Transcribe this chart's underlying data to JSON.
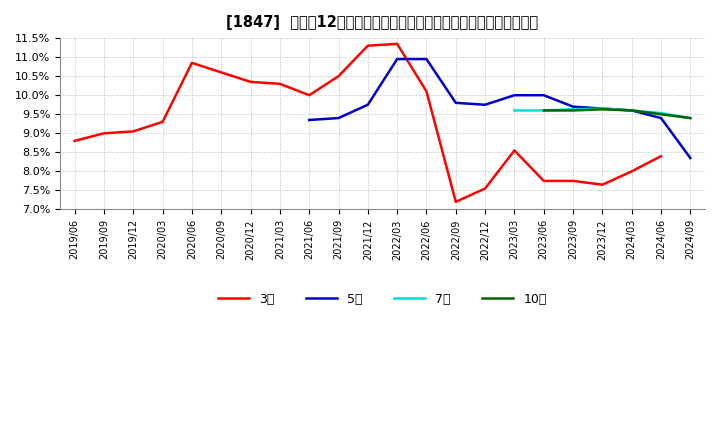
{
  "title": "[1847]  売上高12か月移動合計の対前年同期増減率の標準偏差の推移",
  "ylim": [
    0.07,
    0.115
  ],
  "yticks": [
    0.07,
    0.075,
    0.08,
    0.085,
    0.09,
    0.095,
    0.1,
    0.105,
    0.11,
    0.115
  ],
  "background_color": "#ffffff",
  "grid_color": "#bbbbbb",
  "series": {
    "3year": {
      "color": "#ff0000",
      "label": "3年",
      "data": [
        [
          "2019/06",
          0.088
        ],
        [
          "2019/09",
          0.09
        ],
        [
          "2019/12",
          0.0905
        ],
        [
          "2020/03",
          0.093
        ],
        [
          "2020/06",
          0.1085
        ],
        [
          "2020/09",
          0.106
        ],
        [
          "2020/12",
          0.1035
        ],
        [
          "2021/03",
          0.103
        ],
        [
          "2021/06",
          0.1
        ],
        [
          "2021/09",
          0.105
        ],
        [
          "2021/12",
          0.113
        ],
        [
          "2022/03",
          0.1135
        ],
        [
          "2022/06",
          0.101
        ],
        [
          "2022/09",
          0.072
        ],
        [
          "2022/12",
          0.0755
        ],
        [
          "2023/03",
          0.0855
        ],
        [
          "2023/06",
          0.0775
        ],
        [
          "2023/09",
          0.0775
        ],
        [
          "2023/12",
          0.0765
        ],
        [
          "2024/03",
          0.08
        ],
        [
          "2024/06",
          0.084
        ]
      ]
    },
    "5year": {
      "color": "#0000cc",
      "label": "5年",
      "data": [
        [
          "2021/06",
          0.0935
        ],
        [
          "2021/09",
          0.094
        ],
        [
          "2021/12",
          0.0975
        ],
        [
          "2022/03",
          0.1095
        ],
        [
          "2022/06",
          0.1095
        ],
        [
          "2022/09",
          0.098
        ],
        [
          "2022/12",
          0.0975
        ],
        [
          "2023/03",
          0.1
        ],
        [
          "2023/06",
          0.1
        ],
        [
          "2023/09",
          0.097
        ],
        [
          "2023/12",
          0.0965
        ],
        [
          "2024/03",
          0.096
        ],
        [
          "2024/06",
          0.094
        ],
        [
          "2024/09",
          0.0835
        ]
      ]
    },
    "7year": {
      "color": "#00dddd",
      "label": "7年",
      "data": [
        [
          "2023/03",
          0.096
        ],
        [
          "2023/06",
          0.096
        ],
        [
          "2023/09",
          0.0963
        ],
        [
          "2023/12",
          0.0965
        ],
        [
          "2024/03",
          0.096
        ],
        [
          "2024/06",
          0.0953
        ],
        [
          "2024/09",
          0.094
        ]
      ]
    },
    "10year": {
      "color": "#006600",
      "label": "10年",
      "data": [
        [
          "2023/06",
          0.096
        ],
        [
          "2023/09",
          0.096
        ],
        [
          "2023/12",
          0.0963
        ],
        [
          "2024/03",
          0.096
        ],
        [
          "2024/06",
          0.095
        ],
        [
          "2024/09",
          0.094
        ]
      ]
    }
  },
  "xtick_labels": [
    "2019/06",
    "2019/09",
    "2019/12",
    "2020/03",
    "2020/06",
    "2020/09",
    "2020/12",
    "2021/03",
    "2021/06",
    "2021/09",
    "2021/12",
    "2022/03",
    "2022/06",
    "2022/09",
    "2022/12",
    "2023/03",
    "2023/06",
    "2023/09",
    "2023/12",
    "2024/03",
    "2024/06",
    "2024/09"
  ]
}
